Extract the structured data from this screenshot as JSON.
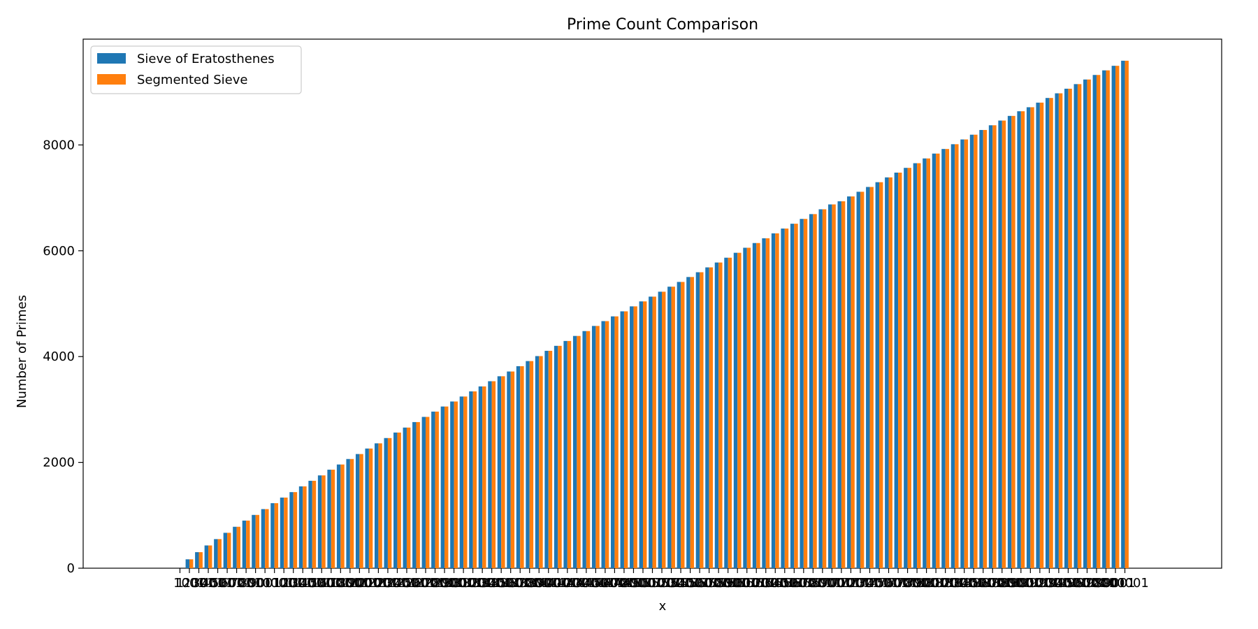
{
  "chart_data": {
    "type": "bar",
    "title": "Prime Count Comparison",
    "xlabel": "x",
    "ylabel": "Number of Primes",
    "ylim": [
      0,
      10000
    ],
    "yticks": [
      0,
      2000,
      4000,
      6000,
      8000
    ],
    "grid": false,
    "legend_position": "top-left",
    "colors": {
      "sieve": "#1f77b4",
      "segmented": "#ff7f0e",
      "axis": "#000000"
    },
    "categories": [
      "1",
      "1001",
      "2001",
      "3001",
      "4001",
      "5001",
      "6001",
      "7001",
      "8001",
      "9001",
      "10001",
      "11001",
      "12001",
      "13001",
      "14001",
      "15001",
      "16001",
      "17001",
      "18001",
      "19001",
      "20001",
      "21001",
      "22001",
      "23001",
      "24001",
      "25001",
      "26001",
      "27001",
      "28001",
      "29001",
      "30001",
      "31001",
      "32001",
      "33001",
      "34001",
      "35001",
      "36001",
      "37001",
      "38001",
      "39001",
      "40001",
      "41001",
      "42001",
      "43001",
      "44001",
      "45001",
      "46001",
      "47001",
      "48001",
      "49001",
      "50001",
      "51001",
      "52001",
      "53001",
      "54001",
      "55001",
      "56001",
      "57001",
      "58001",
      "59001",
      "60001",
      "61001",
      "62001",
      "63001",
      "64001",
      "65001",
      "66001",
      "67001",
      "68001",
      "69001",
      "70001",
      "71001",
      "72001",
      "73001",
      "74001",
      "75001",
      "76001",
      "77001",
      "78001",
      "79001",
      "80001",
      "81001",
      "82001",
      "83001",
      "84001",
      "85001",
      "86001",
      "87001",
      "88001",
      "89001",
      "90001",
      "91001",
      "92001",
      "93001",
      "94001",
      "95001",
      "96001",
      "97001",
      "98001",
      "99001",
      "100001"
    ],
    "series": [
      {
        "name": "Sieve of Eratosthenes",
        "values": [
          0,
          168,
          303,
          430,
          550,
          669,
          783,
          900,
          1007,
          1117,
          1229,
          1335,
          1438,
          1547,
          1652,
          1754,
          1862,
          1960,
          2064,
          2158,
          2262,
          2360,
          2460,
          2564,
          2658,
          2762,
          2860,
          2960,
          3056,
          3151,
          3245,
          3342,
          3436,
          3534,
          3628,
          3718,
          3818,
          3915,
          4009,
          4109,
          4203,
          4295,
          4390,
          4482,
          4579,
          4670,
          4760,
          4855,
          4949,
          5043,
          5133,
          5226,
          5321,
          5411,
          5504,
          5594,
          5686,
          5778,
          5869,
          5962,
          6057,
          6146,
          6236,
          6329,
          6420,
          6511,
          6602,
          6693,
          6784,
          6876,
          6935,
          7027,
          7115,
          7206,
          7296,
          7387,
          7477,
          7567,
          7655,
          7745,
          7837,
          7924,
          8014,
          8104,
          8194,
          8283,
          8372,
          8461,
          8549,
          8637,
          8713,
          8800,
          8888,
          8976,
          9063,
          9150,
          9237,
          9323,
          9410,
          9496,
          9592
        ]
      },
      {
        "name": "Segmented Sieve",
        "values": [
          0,
          168,
          303,
          430,
          550,
          669,
          783,
          900,
          1007,
          1117,
          1229,
          1335,
          1438,
          1547,
          1652,
          1754,
          1862,
          1960,
          2064,
          2158,
          2262,
          2360,
          2460,
          2564,
          2658,
          2762,
          2860,
          2960,
          3056,
          3151,
          3245,
          3342,
          3436,
          3534,
          3628,
          3718,
          3818,
          3915,
          4009,
          4109,
          4203,
          4295,
          4390,
          4482,
          4579,
          4670,
          4760,
          4855,
          4949,
          5043,
          5133,
          5226,
          5321,
          5411,
          5504,
          5594,
          5686,
          5778,
          5869,
          5962,
          6057,
          6146,
          6236,
          6329,
          6420,
          6511,
          6602,
          6693,
          6784,
          6876,
          6935,
          7027,
          7115,
          7206,
          7296,
          7387,
          7477,
          7567,
          7655,
          7745,
          7837,
          7924,
          8014,
          8104,
          8194,
          8283,
          8372,
          8461,
          8549,
          8637,
          8713,
          8800,
          8888,
          8976,
          9063,
          9150,
          9237,
          9323,
          9410,
          9496,
          9592
        ]
      }
    ]
  }
}
